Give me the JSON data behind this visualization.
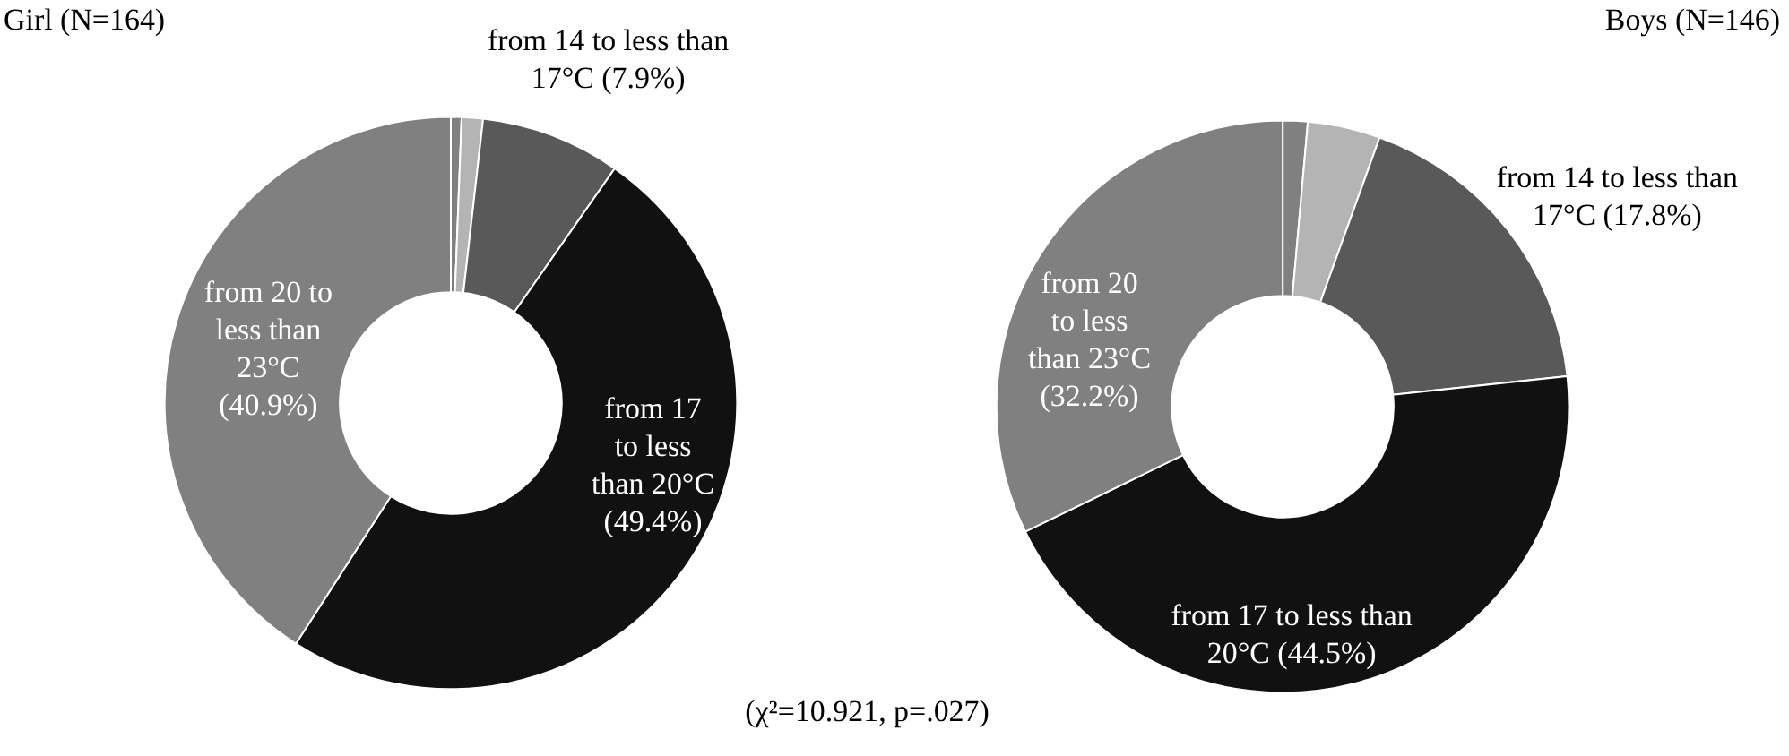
{
  "chart_data": [
    {
      "type": "donut",
      "title": "Girl (N=164)",
      "categories": [
        null,
        null,
        "from 14 to less than 17°C",
        "from 17 to less than 20°C",
        "from 20 to less than 23°C"
      ],
      "values": [
        0.6,
        1.2,
        7.9,
        49.4,
        40.9
      ],
      "value_labels": [
        null,
        null,
        "(7.9%)",
        "(49.4%)",
        "(40.9%)"
      ],
      "colors": [
        "#808080",
        "#b4b4b4",
        "#595959",
        "#111111",
        "#808080"
      ],
      "annotations": [
        "(χ²=10.921, p=.027)"
      ]
    },
    {
      "type": "donut",
      "title": "Boys (N=146)",
      "categories": [
        null,
        null,
        "from 14 to less than 17°C",
        "from 17 to less than 20°C",
        "from 20 to less than 23°C"
      ],
      "values": [
        1.4,
        4.1,
        17.8,
        44.5,
        32.2
      ],
      "value_labels": [
        null,
        null,
        "(17.8%)",
        "(44.5%)",
        "(32.2%)"
      ],
      "colors": [
        "#808080",
        "#b4b4b4",
        "#595959",
        "#111111",
        "#808080"
      ]
    }
  ]
}
